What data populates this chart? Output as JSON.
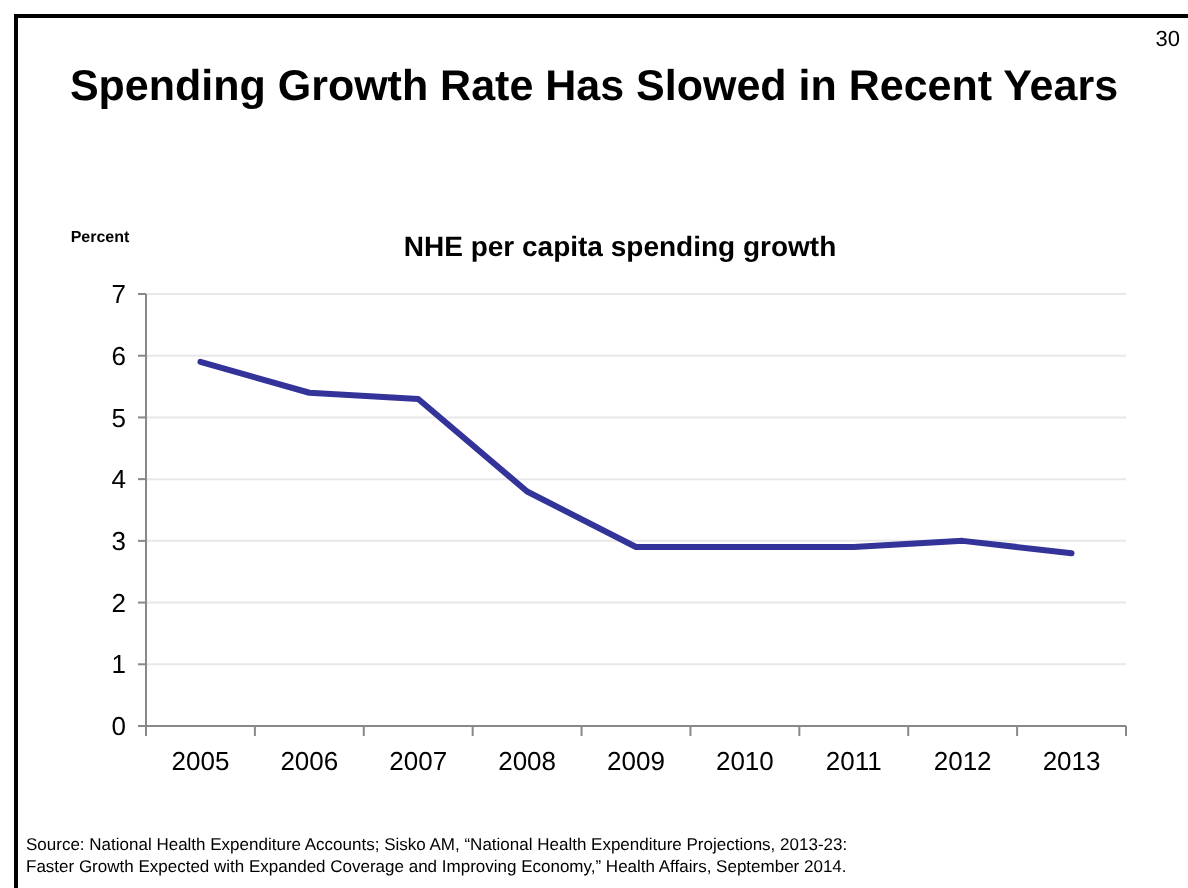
{
  "chart_data": {
    "type": "line",
    "title": "Spending Growth Rate Has Slowed in Recent Years",
    "subtitle": "NHE per capita spending growth",
    "ylabel": "Percent",
    "categories": [
      "2005",
      "2006",
      "2007",
      "2008",
      "2009",
      "2010",
      "2011",
      "2012",
      "2013"
    ],
    "series": [
      {
        "color": "#333399",
        "values": [
          5.9,
          5.4,
          5.3,
          3.8,
          2.9,
          2.9,
          2.9,
          3.0,
          2.8
        ]
      }
    ],
    "ylim": [
      0,
      7
    ],
    "yticks": [
      0,
      1,
      2,
      3,
      4,
      5,
      6,
      7
    ],
    "grid": "y",
    "marker": "none",
    "line_style": "solid",
    "annotations": [
      "30",
      "Source: National Health Expenditure Accounts; Sisko AM, “National Health Expenditure Projections, 2013-23: Faster Growth Expected with Expanded Coverage and Improving Economy,” Health Affairs, September 2014."
    ]
  }
}
